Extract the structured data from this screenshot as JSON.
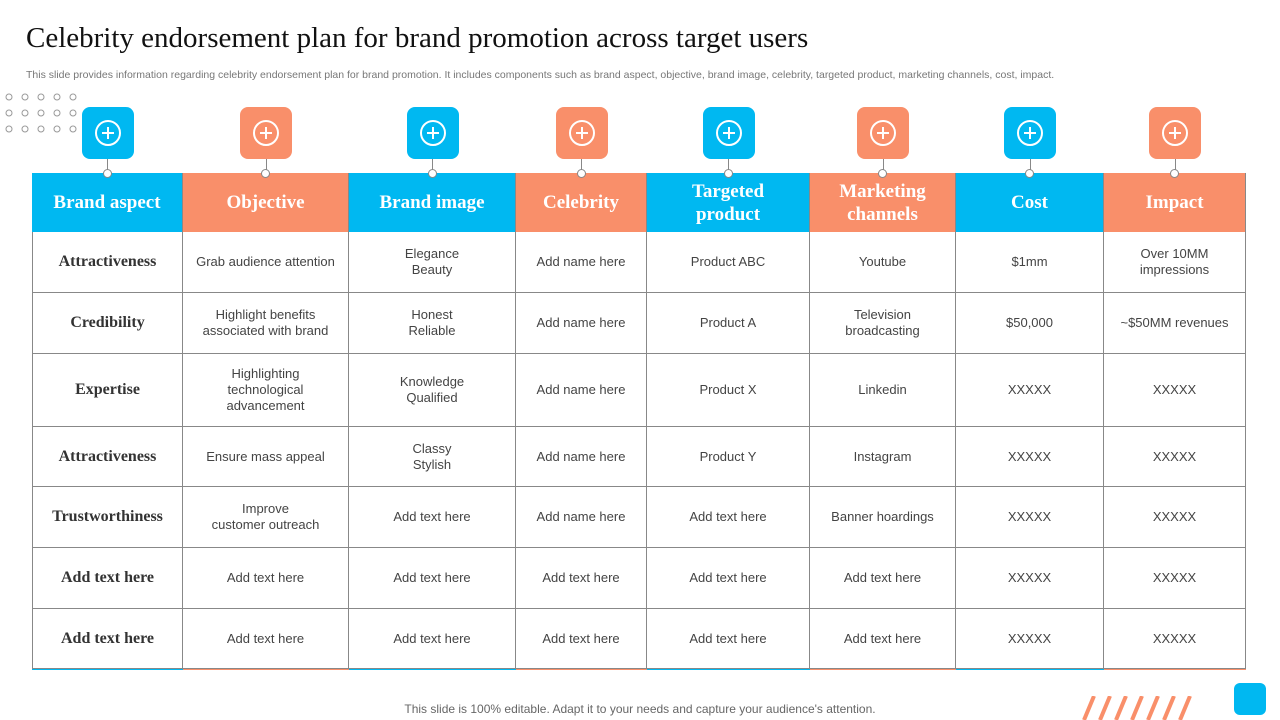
{
  "title": "Celebrity endorsement plan for brand promotion across target users",
  "subtitle": "This slide provides information regarding celebrity endorsement plan for brand promotion. It includes components such as brand aspect, objective, brand image, celebrity, targeted product, marketing channels, cost, impact.",
  "table": {
    "headers": [
      "Brand aspect",
      "Objective",
      "Brand image",
      "Celebrity",
      "Targeted\nproduct",
      "Marketing\nchannels",
      "Cost",
      "Impact"
    ],
    "rows": [
      [
        "Attractiveness",
        "Grab audience  attention",
        "Elegance\nBeauty",
        "Add name here",
        "Product ABC",
        "Youtube",
        "$1mm",
        "Over 10MM\nimpressions"
      ],
      [
        "Credibility",
        "Highlight benefits\nassociated with brand",
        "Honest\nReliable",
        "Add name here",
        "Product A",
        "Television\nbroadcasting",
        "$50,000",
        "~$50MM revenues"
      ],
      [
        "Expertise",
        "Highlighting\ntechnological\nadvancement",
        "Knowledge\nQualified",
        "Add name here",
        "Product X",
        "Linkedin",
        "XXXXX",
        "XXXXX"
      ],
      [
        "Attractiveness",
        "Ensure mass appeal",
        "Classy\nStylish",
        "Add name here",
        "Product Y",
        "Instagram",
        "XXXXX",
        "XXXXX"
      ],
      [
        "Trustworthiness",
        "Improve\ncustomer outreach",
        "Add text here",
        "Add name here",
        "Add text here",
        "Banner hoardings",
        "XXXXX",
        "XXXXX"
      ],
      [
        "Add text here",
        "Add text here",
        "Add text here",
        "Add text here",
        "Add text here",
        "Add text here",
        "XXXXX",
        "XXXXX"
      ],
      [
        "Add text here",
        "Add text here",
        "Add text here",
        "Add text here",
        "Add text here",
        "Add text here",
        "XXXXX",
        "XXXXX"
      ]
    ]
  },
  "footer": "This slide is 100% editable. Adapt it to your needs and capture your audience's attention."
}
